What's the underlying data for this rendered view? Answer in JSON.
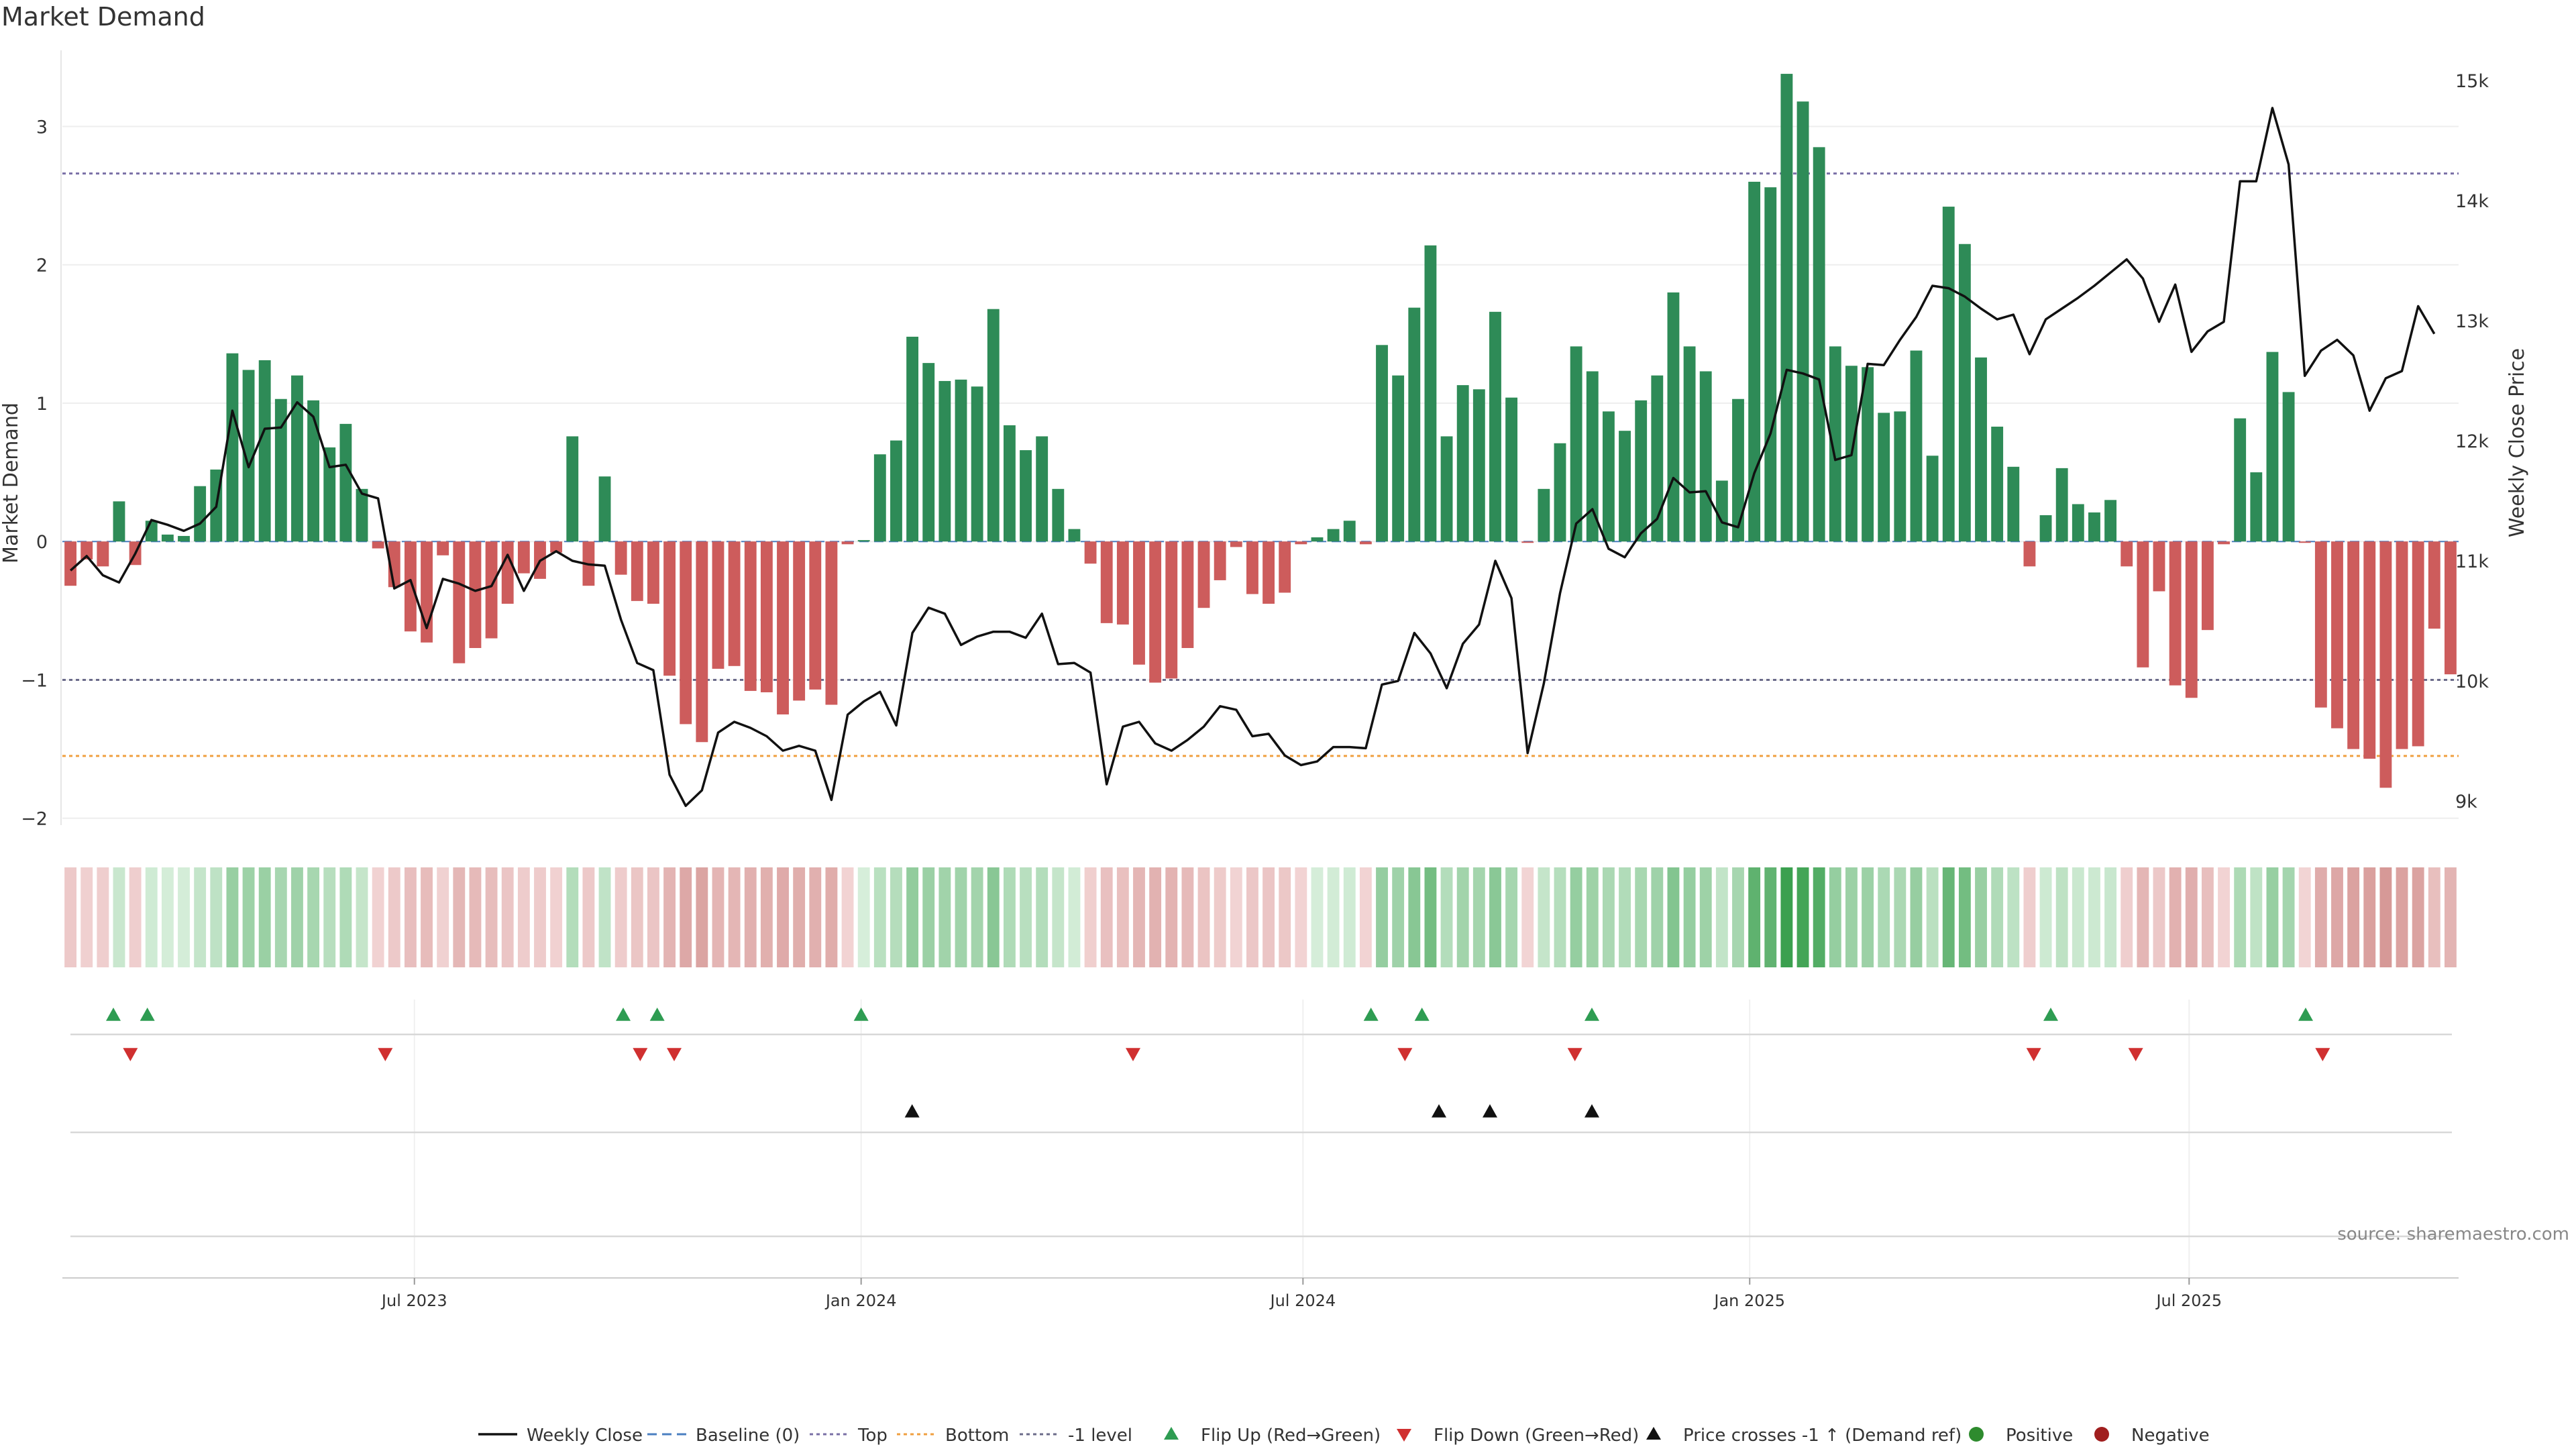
{
  "chart_data": {
    "type": "bar",
    "title": "Market Demand",
    "ylabel": "Market Demand",
    "y2label": "Weekly Close Price",
    "ylim": [
      -2.05,
      3.55
    ],
    "y2lim": [
      8800,
      15250
    ],
    "yticks": [
      -2,
      -1,
      0,
      1,
      2,
      3
    ],
    "ytick_labels": [
      "−2",
      "−1",
      "0",
      "1",
      "2",
      "3"
    ],
    "y2ticks": [
      9000,
      10000,
      11000,
      12000,
      13000,
      14000,
      15000
    ],
    "y2tick_labels": [
      "9k",
      "10k",
      "11k",
      "12k",
      "13k",
      "14k",
      "15k"
    ],
    "x_start_date": "2023-02-06",
    "x_end_date": "2025-10-20",
    "xticks": [
      {
        "date": "2023-07-01",
        "label": "Jul 2023"
      },
      {
        "date": "2024-01-01",
        "label": "Jan 2024"
      },
      {
        "date": "2024-07-01",
        "label": "Jul 2024"
      },
      {
        "date": "2025-01-01",
        "label": "Jan 2025"
      },
      {
        "date": "2025-07-01",
        "label": "Jul 2025"
      }
    ],
    "reference_lines": [
      {
        "name": "Top",
        "value": 2.66,
        "color": "#7a6fa6",
        "style": "dotted"
      },
      {
        "name": "-1 level",
        "value": -1,
        "color": "#6b6b8a",
        "style": "dotted"
      },
      {
        "name": "Bottom",
        "value": -1.55,
        "color": "#f0a040",
        "style": "dotted"
      },
      {
        "name": "Baseline (0)",
        "value": 0,
        "color": "#4a7fc1",
        "style": "dashed"
      }
    ],
    "series": [
      {
        "name": "Market Demand",
        "kind": "bar",
        "values": [
          -0.32,
          -0.13,
          -0.18,
          0.29,
          -0.17,
          0.15,
          0.05,
          0.04,
          0.4,
          0.52,
          1.36,
          1.24,
          1.31,
          1.03,
          1.2,
          1.02,
          0.68,
          0.85,
          0.38,
          -0.05,
          -0.33,
          -0.65,
          -0.73,
          -0.1,
          -0.88,
          -0.77,
          -0.7,
          -0.45,
          -0.23,
          -0.27,
          -0.08,
          0.76,
          -0.32,
          0.47,
          -0.24,
          -0.43,
          -0.45,
          -0.97,
          -1.32,
          -1.45,
          -0.92,
          -0.9,
          -1.08,
          -1.09,
          -1.25,
          -1.15,
          -1.07,
          -1.18,
          -0.02,
          0.01,
          0.63,
          0.73,
          1.48,
          1.29,
          1.16,
          1.17,
          1.12,
          1.68,
          0.84,
          0.66,
          0.76,
          0.38,
          0.09,
          -0.16,
          -0.59,
          -0.6,
          -0.89,
          -1.02,
          -0.99,
          -0.77,
          -0.48,
          -0.28,
          -0.04,
          -0.38,
          -0.45,
          -0.37,
          -0.02,
          0.03,
          0.09,
          0.15,
          -0.02,
          1.42,
          1.2,
          1.69,
          2.14,
          0.76,
          1.13,
          1.1,
          1.66,
          1.04,
          -0.01,
          0.38,
          0.71,
          1.41,
          1.23,
          0.94,
          0.8,
          1.02,
          1.2,
          1.8,
          1.41,
          1.23,
          0.44,
          1.03,
          2.6,
          2.56,
          3.38,
          3.18,
          2.85,
          1.41,
          1.27,
          1.26,
          0.93,
          0.94,
          1.38,
          0.62,
          2.42,
          2.15,
          1.33,
          0.83,
          0.54,
          -0.18,
          0.19,
          0.53,
          0.27,
          0.21,
          0.3,
          -0.18,
          -0.91,
          -0.36,
          -1.04,
          -1.13,
          -0.64,
          -0.02,
          0.89,
          0.5,
          1.37,
          1.08,
          -0.01,
          -1.2,
          -1.35,
          -1.5,
          -1.57,
          -1.78,
          -1.5,
          -1.48,
          -0.63,
          -0.96
        ],
        "positive_color": "#2e8b57",
        "negative_color": "#cd5c5c"
      },
      {
        "name": "Weekly Close",
        "kind": "line",
        "axis": "right",
        "color": "#111111",
        "values": [
          10920,
          11040,
          10880,
          10820,
          11060,
          11340,
          11300,
          11250,
          11310,
          11450,
          12250,
          11780,
          12100,
          12110,
          12320,
          12200,
          11780,
          11800,
          11560,
          11520,
          10770,
          10840,
          10440,
          10850,
          10810,
          10750,
          10790,
          11050,
          10750,
          11000,
          11080,
          11000,
          10970,
          10960,
          10510,
          10150,
          10090,
          9220,
          8960,
          9090,
          9570,
          9660,
          9610,
          9540,
          9420,
          9460,
          9420,
          9010,
          9720,
          9830,
          9910,
          9630,
          10400,
          10610,
          10560,
          10300,
          10370,
          10410,
          10410,
          10360,
          10560,
          10140,
          10150,
          10070,
          9140,
          9620,
          9660,
          9480,
          9420,
          9510,
          9620,
          9790,
          9760,
          9540,
          9560,
          9380,
          9300,
          9330,
          9450,
          9450,
          9440,
          9970,
          10000,
          10400,
          10230,
          9940,
          10310,
          10470,
          11000,
          10690,
          9400,
          9980,
          10730,
          11310,
          11430,
          11100,
          11030,
          11230,
          11350,
          11690,
          11570,
          11580,
          11320,
          11280,
          11730,
          12060,
          12590,
          12560,
          12510,
          11840,
          11880,
          12640,
          12630,
          12840,
          13030,
          13290,
          13270,
          13200,
          13100,
          13010,
          13050,
          12720,
          13010,
          13100,
          13190,
          13290,
          13400,
          13510,
          13350,
          12990,
          13300,
          12740,
          12910,
          12990,
          14160,
          14160,
          14770,
          14300,
          12540,
          12750,
          12840,
          12710,
          12250,
          12520,
          12580,
          13120,
          12890
        ]
      }
    ],
    "flip_up_dates": [
      "2023-02-27",
      "2023-03-13",
      "2023-09-25",
      "2023-10-09",
      "2024-01-01",
      "2024-07-29",
      "2024-08-19",
      "2024-10-28",
      "2025-05-05",
      "2025-08-18"
    ],
    "flip_down_dates": [
      "2023-03-06",
      "2023-06-19",
      "2023-10-02",
      "2023-10-16",
      "2024-04-22",
      "2024-08-12",
      "2024-10-21",
      "2025-04-28",
      "2025-06-09",
      "2025-08-25"
    ],
    "price_cross_dates": [
      "2024-01-22",
      "2024-08-26",
      "2024-09-16",
      "2024-10-28"
    ],
    "legend": [
      {
        "label": "Weekly Close",
        "kind": "line",
        "color": "#111111"
      },
      {
        "label": "Baseline (0)",
        "kind": "dashed",
        "color": "#4a7fc1"
      },
      {
        "label": "Top",
        "kind": "dotted",
        "color": "#7a6fa6"
      },
      {
        "label": "Bottom",
        "kind": "dotted",
        "color": "#f0a040"
      },
      {
        "label": "-1 level",
        "kind": "dotted",
        "color": "#6b6b8a"
      },
      {
        "label": "Flip Up (Red→Green)",
        "kind": "tri-up",
        "color": "#2e9c52"
      },
      {
        "label": "Flip Down (Green→Red)",
        "kind": "tri-down",
        "color": "#d03030"
      },
      {
        "label": "Price crosses -1 ↑ (Demand ref)",
        "kind": "tri-up",
        "color": "#111111"
      },
      {
        "label": "Positive",
        "kind": "dot",
        "color": "#2e8b2e"
      },
      {
        "label": "Negative",
        "kind": "dot",
        "color": "#a01e1e"
      }
    ],
    "source": "source: sharemaestro.com"
  }
}
